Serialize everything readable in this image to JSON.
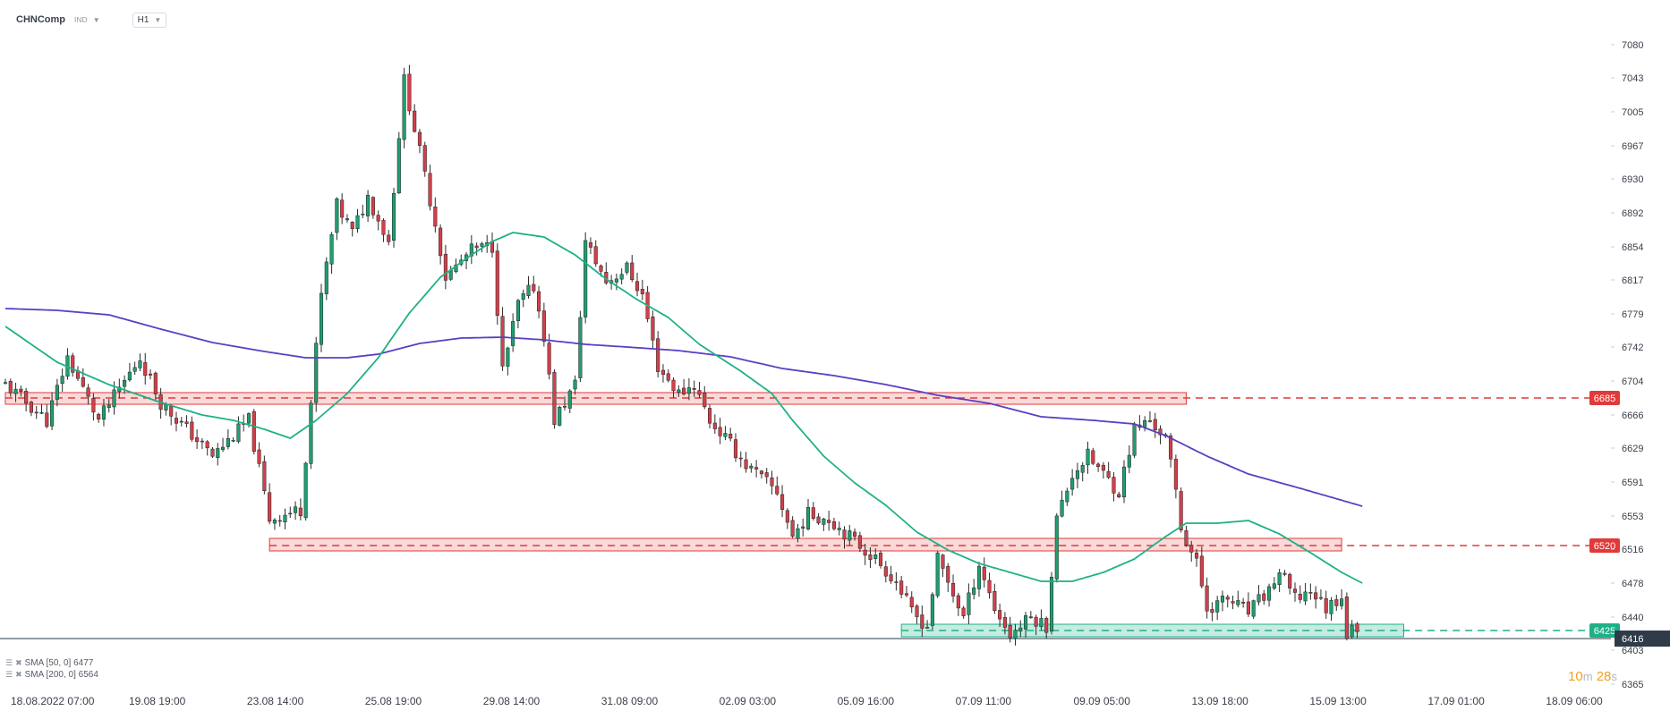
{
  "header": {
    "symbol": "CHNComp",
    "instrument_class": "IND",
    "timeframe": "H1",
    "chevron_icon": "chevron-down-icon"
  },
  "indicators": [
    {
      "label": "SMA [50, 0] 6477",
      "color": "#1db187"
    },
    {
      "label": "SMA [200, 0] 6564",
      "color": "#5b3fc4"
    }
  ],
  "countdown": {
    "minutes": "10",
    "m_unit": "m",
    "seconds": "28",
    "s_unit": "s"
  },
  "colors": {
    "bull": "#1f9e6e",
    "bear": "#d2404a",
    "wick": "#2b2b2b",
    "resistance": "#e03a3a",
    "support": "#1db187",
    "price_line": "#2b3a4a"
  },
  "chart_data": {
    "type": "candlestick",
    "timeframe": "H1",
    "y_range": [
      6355,
      7110
    ],
    "y_ticks": [
      7080,
      7043,
      7005,
      6967,
      6930,
      6892,
      6854,
      6817,
      6779,
      6742,
      6704,
      6666,
      6629,
      6591,
      6553,
      6516,
      6478,
      6440,
      6403,
      6365
    ],
    "x_range_bars": [
      0,
      310
    ],
    "x_ticks": [
      {
        "bar": 0,
        "label": "18.08.2022  07:00"
      },
      {
        "bar": 22.8,
        "label": "19.08  19:00"
      },
      {
        "bar": 45.6,
        "label": "23.08  14:00"
      },
      {
        "bar": 68.4,
        "label": "25.08  19:00"
      },
      {
        "bar": 91.2,
        "label": "29.08  14:00"
      },
      {
        "bar": 114,
        "label": "31.08  09:00"
      },
      {
        "bar": 136.8,
        "label": "02.09  03:00"
      },
      {
        "bar": 159.6,
        "label": "05.09  16:00"
      },
      {
        "bar": 182.4,
        "label": "07.09  11:00"
      },
      {
        "bar": 205.2,
        "label": "09.09  05:00"
      },
      {
        "bar": 228,
        "label": "13.09  18:00"
      },
      {
        "bar": 250.8,
        "label": "15.09  13:00"
      },
      {
        "bar": 273.6,
        "label": "17.09  01:00"
      },
      {
        "bar": 296.4,
        "label": "18.09  06:00"
      }
    ],
    "close_anchors": [
      [
        0,
        6700
      ],
      [
        8,
        6660
      ],
      [
        12,
        6730
      ],
      [
        18,
        6660
      ],
      [
        26,
        6730
      ],
      [
        30,
        6680
      ],
      [
        40,
        6620
      ],
      [
        47,
        6660
      ],
      [
        51,
        6550
      ],
      [
        57,
        6560
      ],
      [
        59,
        6680
      ],
      [
        61,
        6800
      ],
      [
        64,
        6900
      ],
      [
        67,
        6870
      ],
      [
        70,
        6910
      ],
      [
        74,
        6860
      ],
      [
        77,
        7040
      ],
      [
        80,
        6960
      ],
      [
        83,
        6880
      ],
      [
        85,
        6820
      ],
      [
        90,
        6850
      ],
      [
        94,
        6855
      ],
      [
        96,
        6715
      ],
      [
        99,
        6790
      ],
      [
        102,
        6810
      ],
      [
        104,
        6755
      ],
      [
        106,
        6660
      ],
      [
        110,
        6700
      ],
      [
        112,
        6860
      ],
      [
        116,
        6815
      ],
      [
        120,
        6830
      ],
      [
        123,
        6800
      ],
      [
        126,
        6720
      ],
      [
        130,
        6690
      ],
      [
        133,
        6700
      ],
      [
        136,
        6660
      ],
      [
        139,
        6640
      ],
      [
        143,
        6610
      ],
      [
        149,
        6580
      ],
      [
        152,
        6530
      ],
      [
        155,
        6555
      ],
      [
        159,
        6550
      ],
      [
        162,
        6535
      ],
      [
        165,
        6520
      ],
      [
        168,
        6505
      ],
      [
        172,
        6480
      ],
      [
        175,
        6445
      ],
      [
        178,
        6430
      ],
      [
        180,
        6505
      ],
      [
        185,
        6440
      ],
      [
        188,
        6500
      ],
      [
        191,
        6450
      ],
      [
        194,
        6420
      ],
      [
        198,
        6440
      ],
      [
        201,
        6430
      ],
      [
        203,
        6550
      ],
      [
        206,
        6600
      ],
      [
        209,
        6620
      ],
      [
        212,
        6600
      ],
      [
        215,
        6580
      ],
      [
        218,
        6650
      ],
      [
        221,
        6660
      ],
      [
        224,
        6640
      ],
      [
        226,
        6580
      ],
      [
        227,
        6540
      ],
      [
        230,
        6500
      ],
      [
        232,
        6450
      ],
      [
        236,
        6460
      ],
      [
        240,
        6445
      ],
      [
        244,
        6470
      ],
      [
        246,
        6490
      ],
      [
        249,
        6460
      ],
      [
        252,
        6470
      ],
      [
        255,
        6450
      ],
      [
        258,
        6465
      ],
      [
        259,
        6420
      ],
      [
        261,
        6430
      ]
    ],
    "sma50_anchors": [
      [
        0,
        6765
      ],
      [
        10,
        6725
      ],
      [
        20,
        6700
      ],
      [
        30,
        6680
      ],
      [
        38,
        6666
      ],
      [
        44,
        6660
      ],
      [
        50,
        6650
      ],
      [
        55,
        6640
      ],
      [
        60,
        6660
      ],
      [
        66,
        6690
      ],
      [
        72,
        6730
      ],
      [
        78,
        6780
      ],
      [
        84,
        6820
      ],
      [
        90,
        6845
      ],
      [
        94,
        6860
      ],
      [
        98,
        6870
      ],
      [
        104,
        6865
      ],
      [
        110,
        6845
      ],
      [
        116,
        6818
      ],
      [
        122,
        6795
      ],
      [
        128,
        6775
      ],
      [
        134,
        6745
      ],
      [
        142,
        6715
      ],
      [
        148,
        6690
      ],
      [
        152,
        6660
      ],
      [
        158,
        6620
      ],
      [
        164,
        6590
      ],
      [
        170,
        6565
      ],
      [
        176,
        6535
      ],
      [
        182,
        6515
      ],
      [
        188,
        6500
      ],
      [
        194,
        6490
      ],
      [
        200,
        6480
      ],
      [
        206,
        6480
      ],
      [
        212,
        6490
      ],
      [
        218,
        6505
      ],
      [
        224,
        6530
      ],
      [
        228,
        6545
      ],
      [
        234,
        6545
      ],
      [
        240,
        6548
      ],
      [
        246,
        6533
      ],
      [
        252,
        6512
      ],
      [
        258,
        6490
      ],
      [
        262,
        6478
      ]
    ],
    "sma200_anchors": [
      [
        0,
        6785
      ],
      [
        10,
        6783
      ],
      [
        20,
        6778
      ],
      [
        30,
        6762
      ],
      [
        40,
        6747
      ],
      [
        50,
        6737
      ],
      [
        58,
        6730
      ],
      [
        66,
        6730
      ],
      [
        72,
        6734
      ],
      [
        80,
        6746
      ],
      [
        88,
        6752
      ],
      [
        96,
        6753
      ],
      [
        104,
        6750
      ],
      [
        112,
        6745
      ],
      [
        120,
        6742
      ],
      [
        130,
        6738
      ],
      [
        140,
        6731
      ],
      [
        150,
        6718
      ],
      [
        160,
        6710
      ],
      [
        170,
        6700
      ],
      [
        180,
        6688
      ],
      [
        190,
        6679
      ],
      [
        200,
        6664
      ],
      [
        210,
        6660
      ],
      [
        218,
        6656
      ],
      [
        224,
        6643
      ],
      [
        232,
        6620
      ],
      [
        240,
        6600
      ],
      [
        250,
        6584
      ],
      [
        256,
        6574
      ],
      [
        262,
        6564
      ]
    ],
    "zones": [
      {
        "name": "resistance",
        "bar_from": 0,
        "bar_to": 228,
        "y_from": 6678,
        "y_to": 6691,
        "level": 6685,
        "label": "6685"
      },
      {
        "name": "resistance",
        "bar_from": 51,
        "bar_to": 258,
        "y_from": 6514,
        "y_to": 6528,
        "level": 6520,
        "label": "6520"
      },
      {
        "name": "support",
        "bar_from": 173,
        "bar_to": 270,
        "y_from": 6418,
        "y_to": 6432,
        "level": 6425,
        "label": "6425"
      }
    ],
    "last_price": {
      "value": 6416,
      "label": "6416"
    }
  }
}
